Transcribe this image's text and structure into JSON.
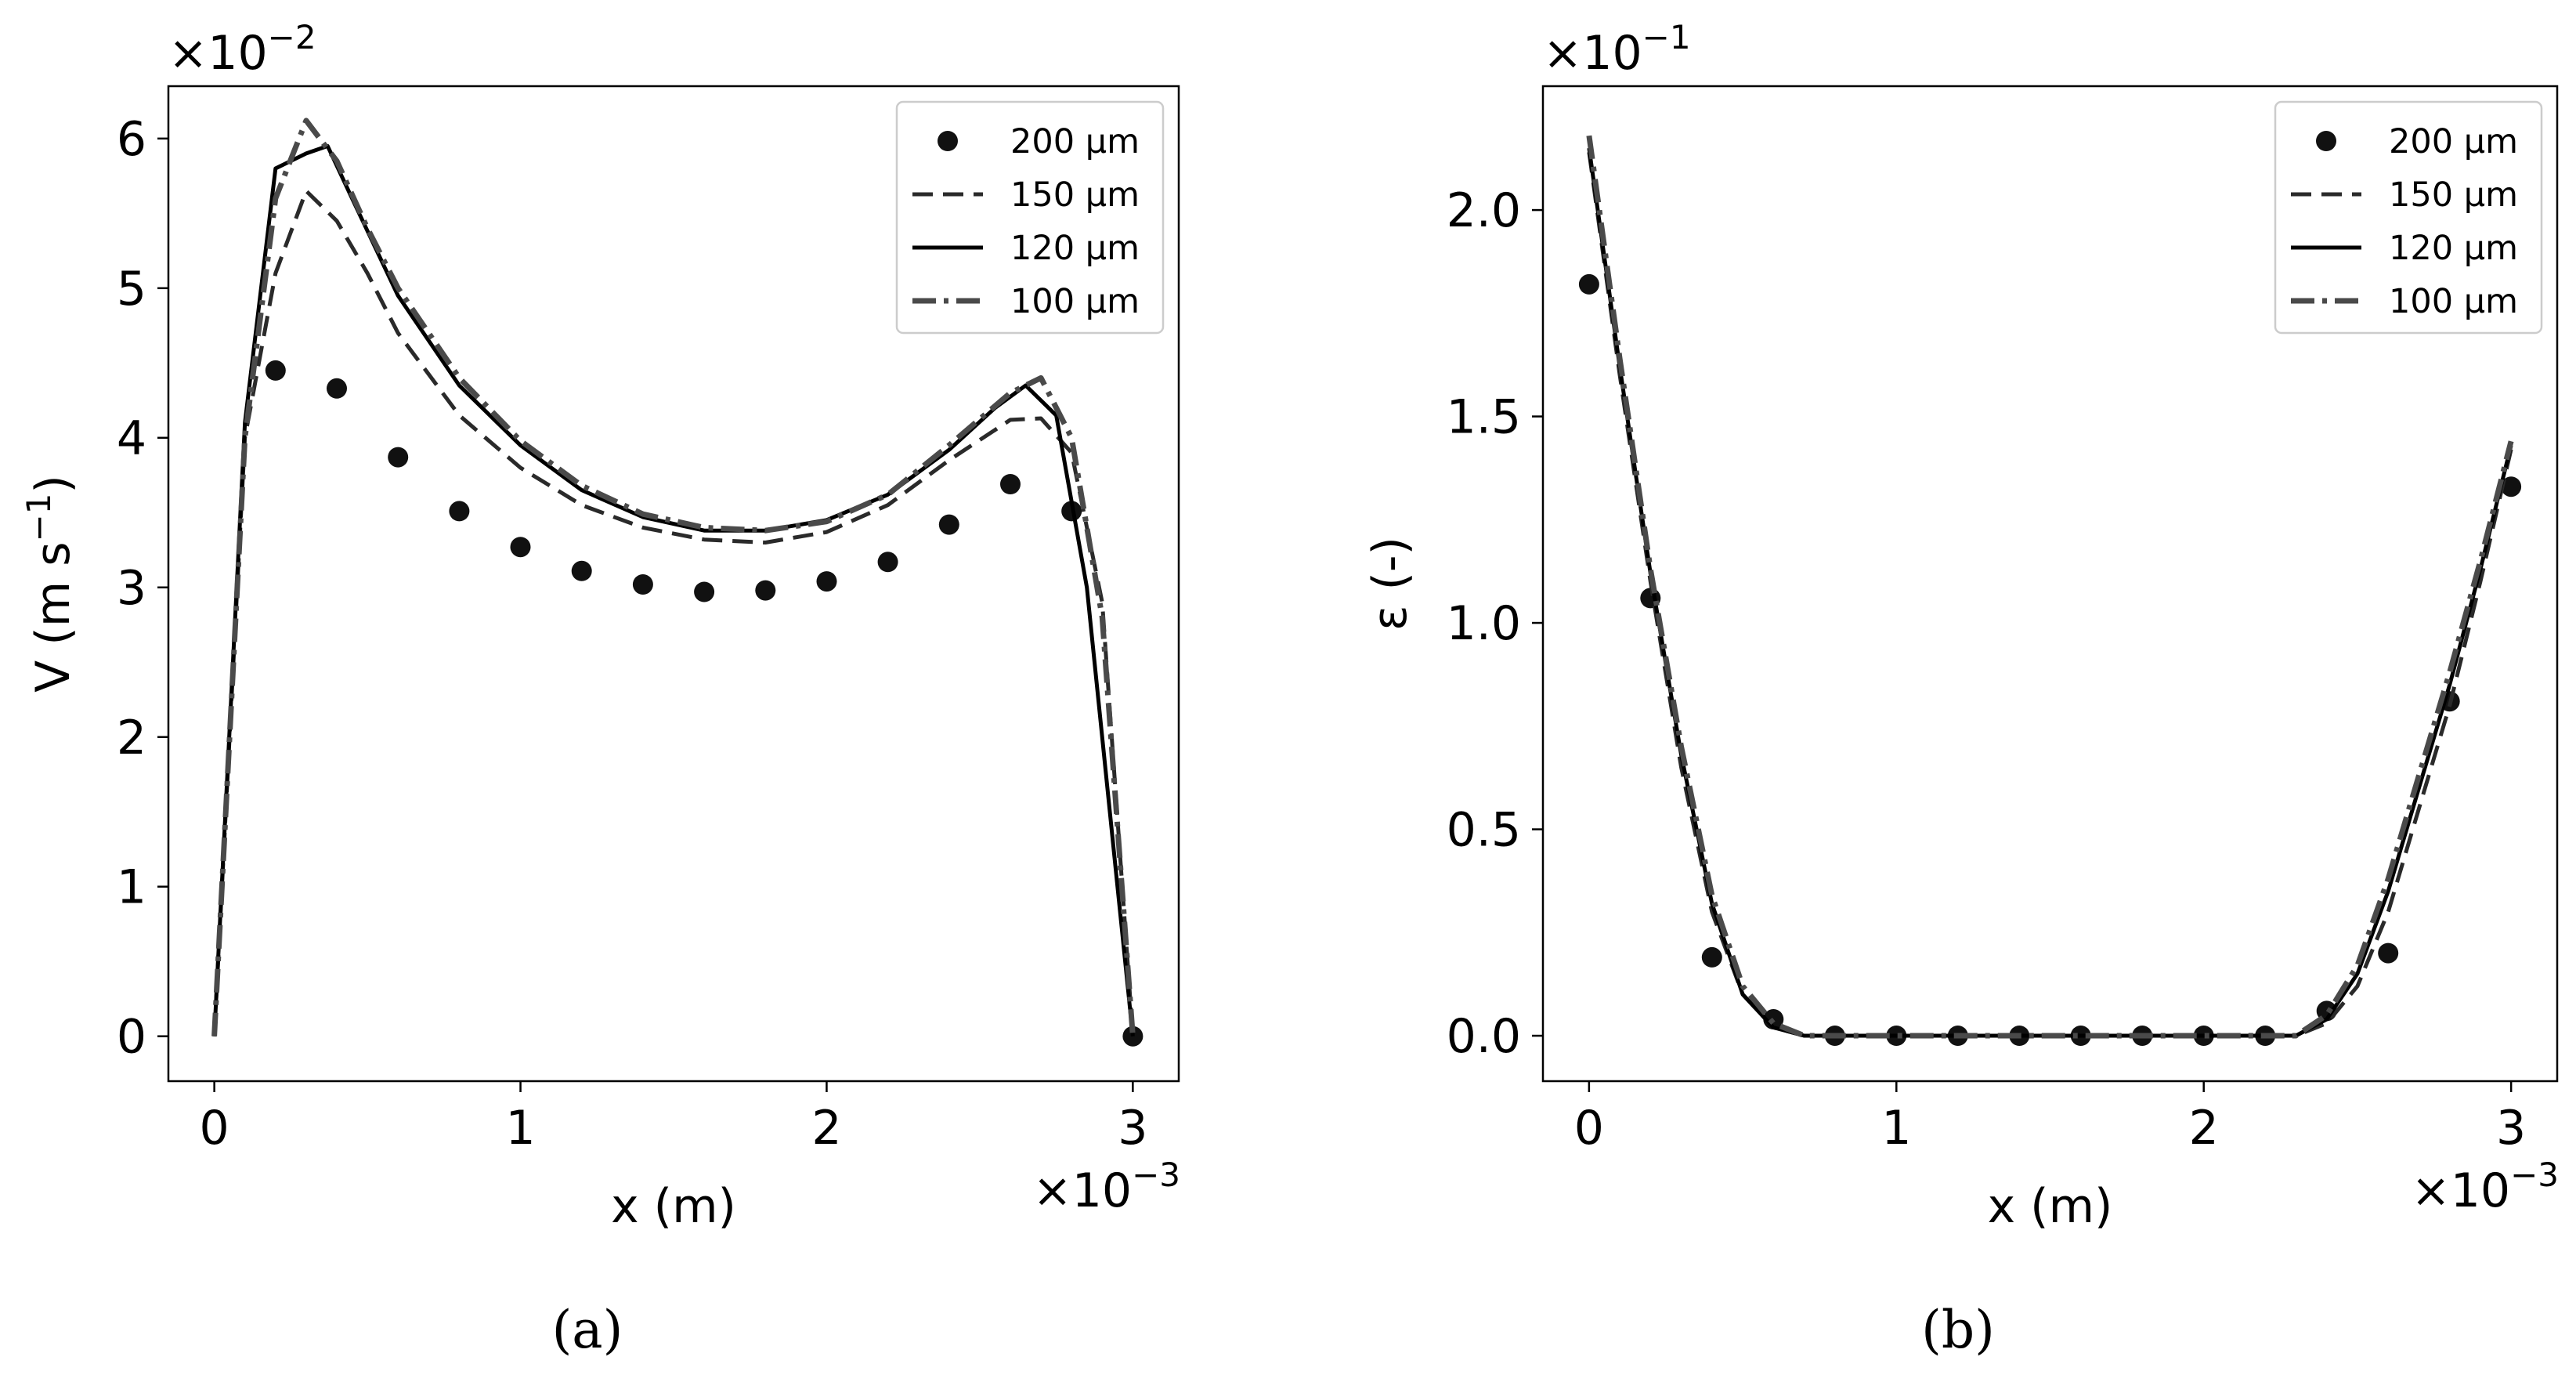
{
  "chart_data": [
    {
      "type": "line",
      "panel_label": "(a)",
      "xlabel": "x (m)",
      "ylabel": "V (m s",
      "ylabel_sup": "−1",
      "ylabel_end": ")",
      "x_multiplier": "×10",
      "x_multiplier_exp": "−3",
      "y_multiplier": "×10",
      "y_multiplier_exp": "−2",
      "xlim": [
        -0.15,
        3.15
      ],
      "ylim": [
        -0.3,
        6.35
      ],
      "xticks": [
        0,
        1,
        2,
        3
      ],
      "xtick_labels": [
        "0",
        "1",
        "2",
        "3"
      ],
      "yticks": [
        0,
        1,
        2,
        3,
        4,
        5,
        6
      ],
      "ytick_labels": [
        "0",
        "1",
        "2",
        "3",
        "4",
        "5",
        "6"
      ],
      "legend_position": "top-right",
      "series": [
        {
          "name": "200 μm",
          "style": "dots",
          "x": [
            0.2,
            0.4,
            0.6,
            0.8,
            1.0,
            1.2,
            1.4,
            1.6,
            1.8,
            2.0,
            2.2,
            2.4,
            2.6,
            2.8,
            3.0
          ],
          "y": [
            4.45,
            4.33,
            3.87,
            3.51,
            3.27,
            3.11,
            3.02,
            2.97,
            2.98,
            3.04,
            3.17,
            3.42,
            3.69,
            3.51,
            0.0
          ]
        },
        {
          "name": "150 μm",
          "style": "dashed",
          "x": [
            0,
            0.1,
            0.2,
            0.3,
            0.4,
            0.5,
            0.6,
            0.8,
            1.0,
            1.2,
            1.4,
            1.6,
            1.8,
            2.0,
            2.2,
            2.4,
            2.6,
            2.7,
            2.8,
            2.9,
            3.0
          ],
          "y": [
            0,
            4.0,
            5.1,
            5.65,
            5.45,
            5.1,
            4.7,
            4.15,
            3.8,
            3.55,
            3.4,
            3.32,
            3.3,
            3.37,
            3.55,
            3.85,
            4.12,
            4.13,
            3.9,
            2.9,
            0.0
          ]
        },
        {
          "name": "120 μm",
          "style": "solid",
          "x": [
            0,
            0.1,
            0.2,
            0.3,
            0.37,
            0.45,
            0.6,
            0.8,
            1.0,
            1.2,
            1.4,
            1.6,
            1.8,
            2.0,
            2.2,
            2.4,
            2.55,
            2.65,
            2.75,
            2.85,
            2.95,
            3.0
          ],
          "y": [
            0,
            4.1,
            5.8,
            5.9,
            5.95,
            5.6,
            4.95,
            4.35,
            3.95,
            3.65,
            3.47,
            3.38,
            3.38,
            3.45,
            3.62,
            3.92,
            4.2,
            4.35,
            4.15,
            3.0,
            1.0,
            0.0
          ]
        },
        {
          "name": "100 μm",
          "style": "dashdot",
          "x": [
            0,
            0.1,
            0.2,
            0.3,
            0.4,
            0.5,
            0.6,
            0.8,
            1.0,
            1.2,
            1.4,
            1.6,
            1.8,
            2.0,
            2.2,
            2.4,
            2.6,
            2.7,
            2.8,
            2.9,
            3.0
          ],
          "y": [
            0,
            4.0,
            5.6,
            6.12,
            5.85,
            5.4,
            5.0,
            4.4,
            3.98,
            3.68,
            3.49,
            3.4,
            3.38,
            3.44,
            3.62,
            3.95,
            4.3,
            4.4,
            4.0,
            2.8,
            0.0
          ]
        }
      ]
    },
    {
      "type": "line",
      "panel_label": "(b)",
      "xlabel": "x (m)",
      "ylabel": "ε (-)",
      "x_multiplier": "×10",
      "x_multiplier_exp": "−3",
      "y_multiplier": "×10",
      "y_multiplier_exp": "−1",
      "xlim": [
        -0.15,
        3.15
      ],
      "ylim": [
        -0.11,
        2.3
      ],
      "xticks": [
        0,
        1,
        2,
        3
      ],
      "xtick_labels": [
        "0",
        "1",
        "2",
        "3"
      ],
      "yticks": [
        0,
        0.5,
        1.0,
        1.5,
        2.0
      ],
      "ytick_labels": [
        "0.0",
        "0.5",
        "1.0",
        "1.5",
        "2.0"
      ],
      "legend_position": "top-right",
      "series": [
        {
          "name": "200 μm",
          "style": "dots",
          "x": [
            0.0,
            0.2,
            0.4,
            0.6,
            0.8,
            1.0,
            1.2,
            1.4,
            1.6,
            1.8,
            2.0,
            2.2,
            2.4,
            2.6,
            2.8,
            3.0
          ],
          "y": [
            1.82,
            1.06,
            0.19,
            0.04,
            0.0,
            0.0,
            0.0,
            0.0,
            0.0,
            0.0,
            0.0,
            0.0,
            0.06,
            0.2,
            0.81,
            1.33
          ]
        },
        {
          "name": "150 μm",
          "style": "dashed",
          "x": [
            0,
            0.1,
            0.2,
            0.3,
            0.4,
            0.5,
            0.6,
            0.7,
            0.8,
            1.0,
            1.5,
            2.0,
            2.3,
            2.4,
            2.5,
            2.6,
            2.7,
            2.8,
            2.9,
            3.0
          ],
          "y": [
            2.14,
            1.6,
            1.1,
            0.65,
            0.3,
            0.1,
            0.02,
            0.0,
            0.0,
            0.0,
            0.0,
            0.0,
            0.0,
            0.03,
            0.12,
            0.3,
            0.55,
            0.8,
            1.1,
            1.42
          ]
        },
        {
          "name": "120 μm",
          "style": "solid",
          "x": [
            0,
            0.1,
            0.2,
            0.3,
            0.4,
            0.5,
            0.6,
            0.7,
            0.8,
            1.0,
            1.5,
            2.0,
            2.3,
            2.4,
            2.5,
            2.6,
            2.7,
            2.8,
            2.9,
            3.0
          ],
          "y": [
            2.15,
            1.62,
            1.12,
            0.68,
            0.32,
            0.1,
            0.02,
            0.0,
            0.0,
            0.0,
            0.0,
            0.0,
            0.0,
            0.04,
            0.15,
            0.35,
            0.6,
            0.85,
            1.13,
            1.43
          ]
        },
        {
          "name": "100 μm",
          "style": "dashdot",
          "x": [
            0,
            0.1,
            0.2,
            0.3,
            0.4,
            0.5,
            0.6,
            0.7,
            0.8,
            1.0,
            1.5,
            2.0,
            2.3,
            2.4,
            2.5,
            2.6,
            2.7,
            2.8,
            2.9,
            3.0
          ],
          "y": [
            2.18,
            1.64,
            1.13,
            0.7,
            0.34,
            0.12,
            0.03,
            0.0,
            0.0,
            0.0,
            0.0,
            0.0,
            0.0,
            0.05,
            0.17,
            0.38,
            0.63,
            0.88,
            1.15,
            1.44
          ]
        }
      ]
    }
  ],
  "colors": {
    "dots": "#111111",
    "dashed": "#2a2a2a",
    "solid": "#000000",
    "dashdot": "#4a4a4a",
    "axis": "#000000"
  }
}
